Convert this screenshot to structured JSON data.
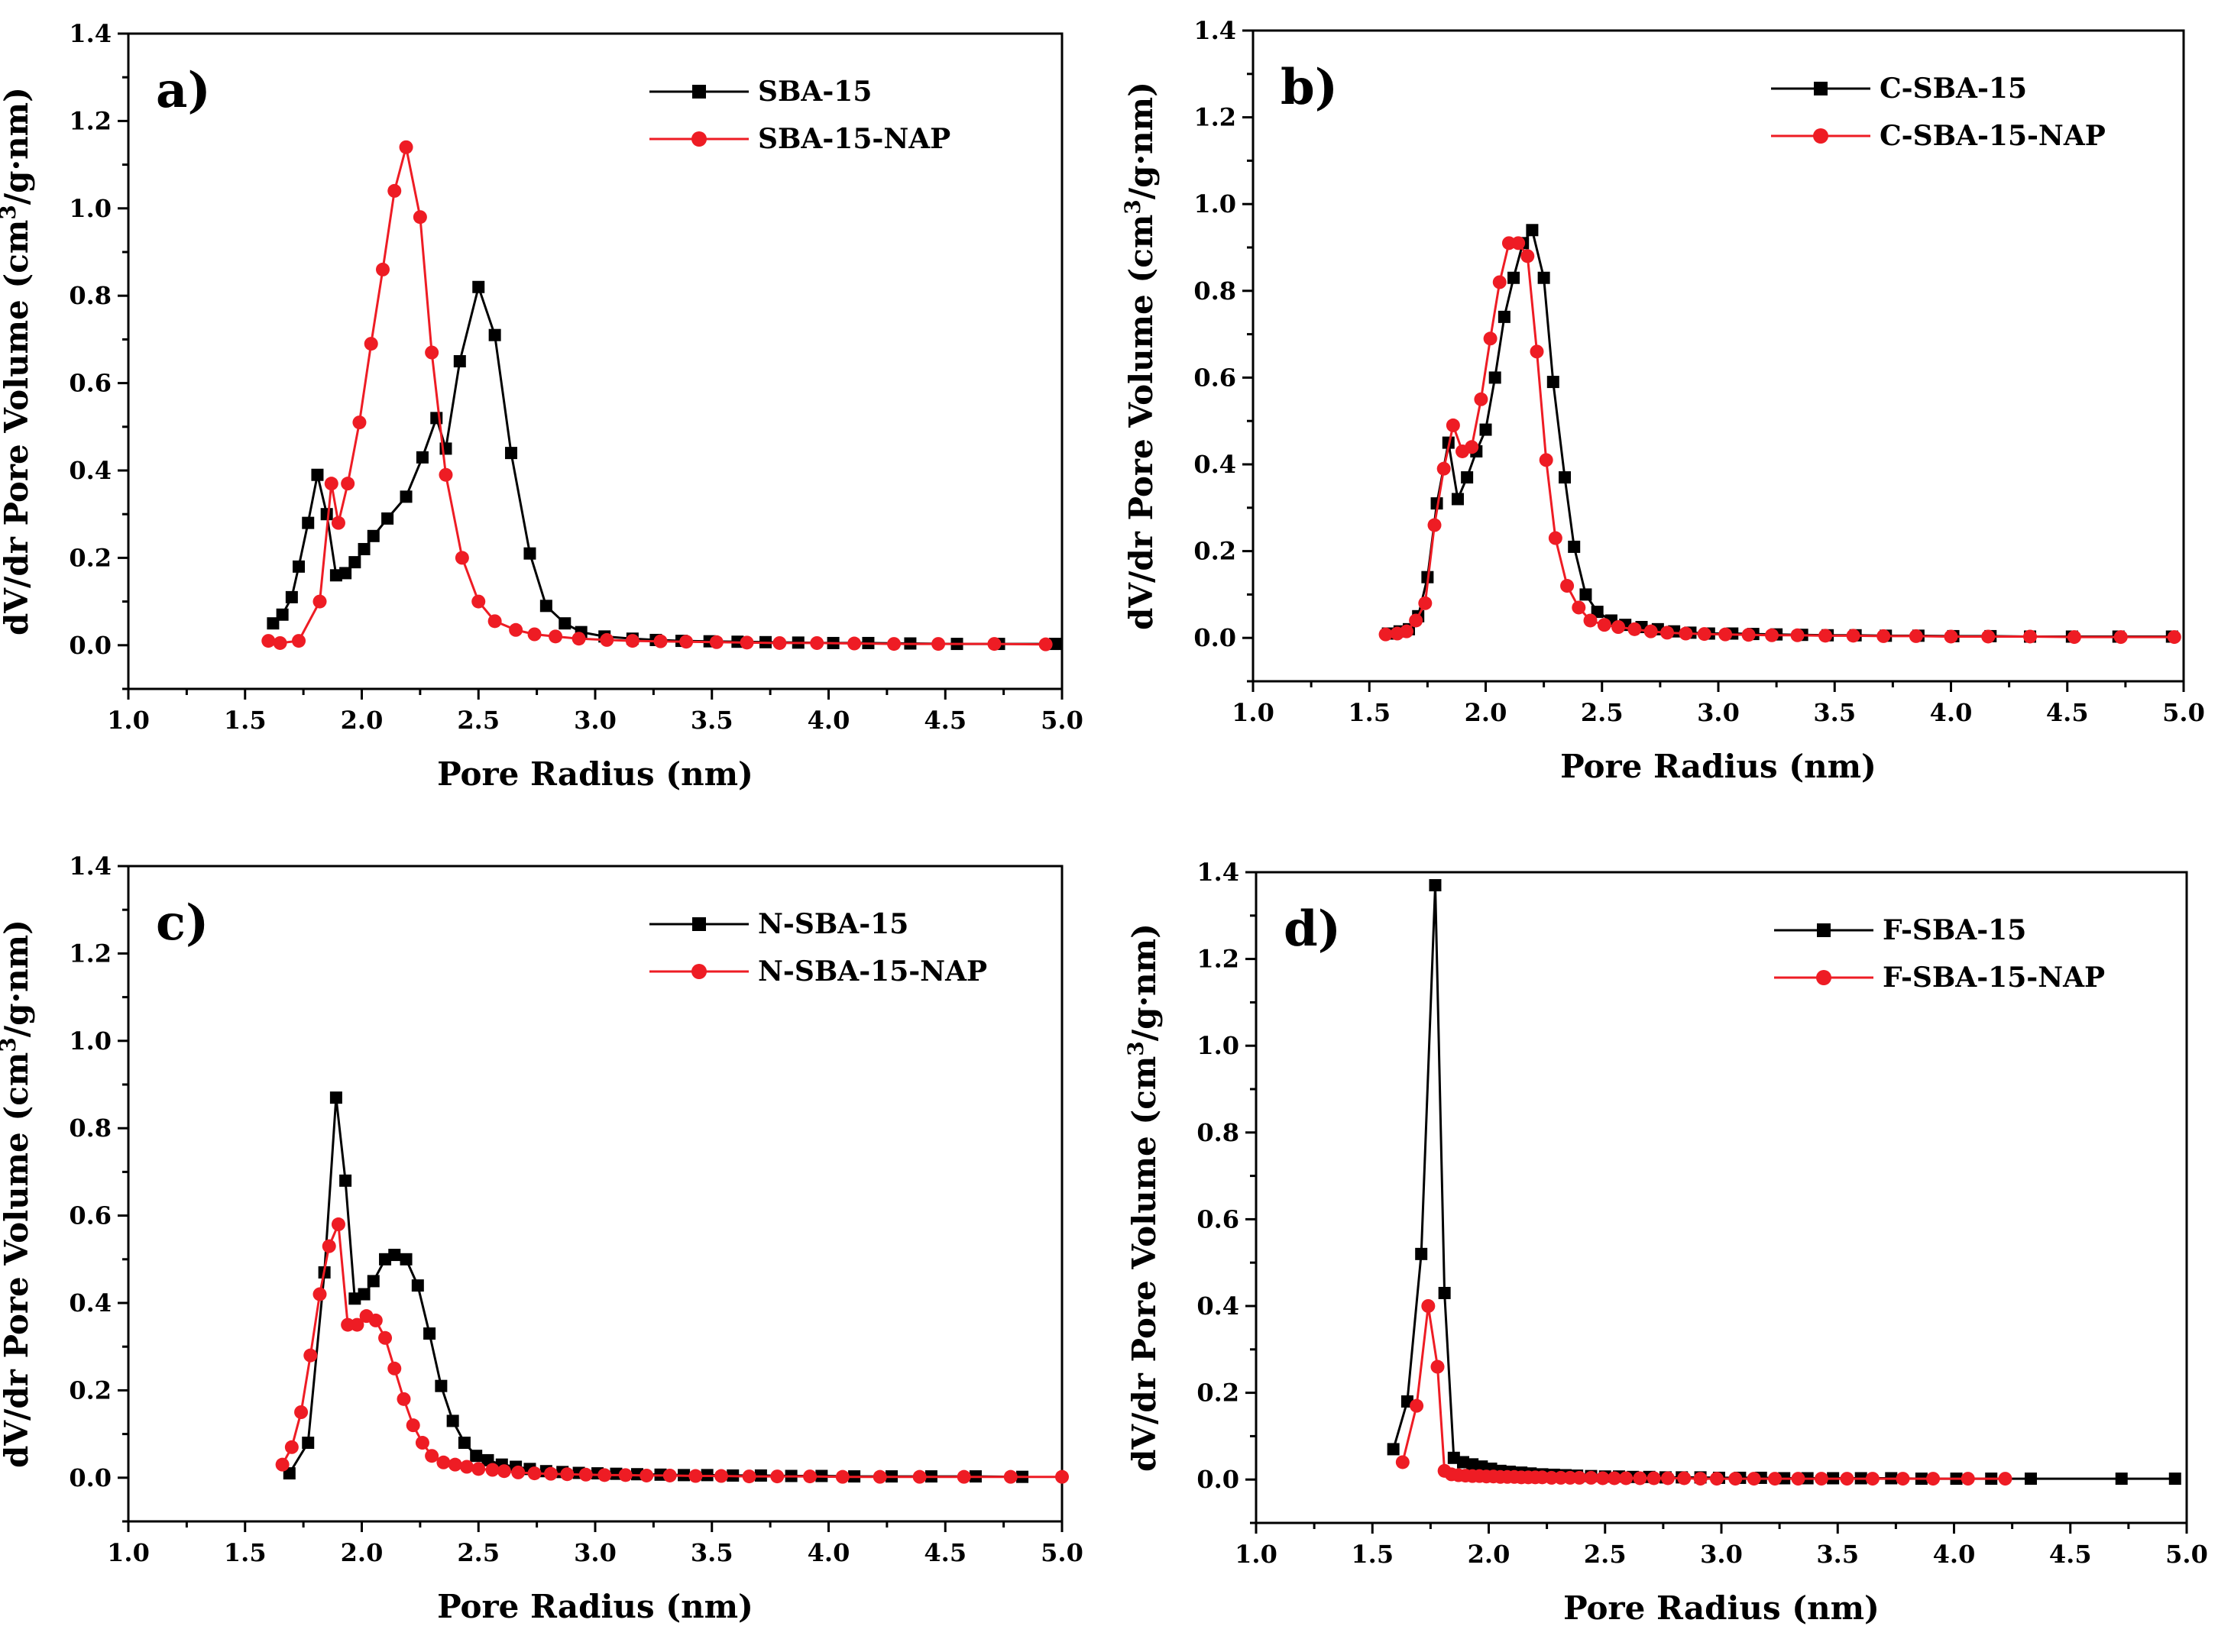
{
  "chart_data": [
    {
      "type": "line",
      "panel_label": "a)",
      "xlabel": "Pore Radius (nm)",
      "ylabel": "dV/dr Pore Volume (cm3/g·nm)",
      "xlim": [
        1.0,
        5.0
      ],
      "ylim": [
        -0.1,
        1.4
      ],
      "xticks": [
        "1.0",
        "1.5",
        "2.0",
        "2.5",
        "3.0",
        "3.5",
        "4.0",
        "4.5",
        "5.0"
      ],
      "yticks": [
        "0.0",
        "0.2",
        "0.4",
        "0.6",
        "0.8",
        "1.0",
        "1.2",
        "1.4"
      ],
      "legend_position": "top-right",
      "series": [
        {
          "name": "SBA-15",
          "color": "#000000",
          "marker": "square",
          "x": [
            1.62,
            1.66,
            1.7,
            1.73,
            1.77,
            1.81,
            1.85,
            1.89,
            1.93,
            1.97,
            2.01,
            2.05,
            2.11,
            2.19,
            2.26,
            2.32,
            2.36,
            2.42,
            2.5,
            2.57,
            2.64,
            2.72,
            2.79,
            2.87,
            2.94,
            3.04,
            3.16,
            3.26,
            3.37,
            3.49,
            3.61,
            3.73,
            3.87,
            4.02,
            4.17,
            4.35,
            4.55,
            4.73,
            4.97
          ],
          "y": [
            0.05,
            0.07,
            0.11,
            0.18,
            0.28,
            0.39,
            0.3,
            0.16,
            0.165,
            0.19,
            0.22,
            0.25,
            0.29,
            0.34,
            0.43,
            0.52,
            0.45,
            0.65,
            0.82,
            0.71,
            0.44,
            0.21,
            0.09,
            0.05,
            0.03,
            0.02,
            0.015,
            0.012,
            0.01,
            0.009,
            0.008,
            0.007,
            0.006,
            0.005,
            0.005,
            0.004,
            0.003,
            0.003,
            0.003
          ]
        },
        {
          "name": "SBA-15-NAP",
          "color": "#ee1c24",
          "marker": "circle",
          "x": [
            1.6,
            1.65,
            1.73,
            1.82,
            1.87,
            1.9,
            1.94,
            1.99,
            2.04,
            2.09,
            2.14,
            2.19,
            2.25,
            2.3,
            2.36,
            2.43,
            2.5,
            2.57,
            2.66,
            2.74,
            2.83,
            2.93,
            3.05,
            3.16,
            3.28,
            3.39,
            3.52,
            3.65,
            3.79,
            3.95,
            4.11,
            4.28,
            4.47,
            4.71,
            4.93
          ],
          "y": [
            0.01,
            0.005,
            0.01,
            0.1,
            0.37,
            0.28,
            0.37,
            0.51,
            0.69,
            0.86,
            1.04,
            1.14,
            0.98,
            0.67,
            0.39,
            0.2,
            0.1,
            0.055,
            0.035,
            0.025,
            0.02,
            0.015,
            0.012,
            0.01,
            0.009,
            0.008,
            0.007,
            0.006,
            0.005,
            0.005,
            0.004,
            0.003,
            0.003,
            0.003,
            0.002
          ]
        }
      ]
    },
    {
      "type": "line",
      "panel_label": "b)",
      "xlabel": "Pore Radius (nm)",
      "ylabel": "dV/dr Pore Volume (cm3/g·nm)",
      "xlim": [
        1.0,
        5.0
      ],
      "ylim": [
        -0.1,
        1.4
      ],
      "xticks": [
        "1.0",
        "1.5",
        "2.0",
        "2.5",
        "3.0",
        "3.5",
        "4.0",
        "4.5",
        "5.0"
      ],
      "yticks": [
        "0.0",
        "0.2",
        "0.4",
        "0.6",
        "0.8",
        "1.0",
        "1.2",
        "1.4"
      ],
      "legend_position": "top-right",
      "series": [
        {
          "name": "C-SBA-15",
          "color": "#000000",
          "marker": "square",
          "x": [
            1.58,
            1.63,
            1.67,
            1.71,
            1.75,
            1.79,
            1.84,
            1.88,
            1.92,
            1.96,
            2.0,
            2.04,
            2.08,
            2.12,
            2.16,
            2.2,
            2.25,
            2.29,
            2.34,
            2.38,
            2.43,
            2.48,
            2.54,
            2.6,
            2.67,
            2.74,
            2.81,
            2.88,
            2.96,
            3.06,
            3.15,
            3.25,
            3.36,
            3.47,
            3.59,
            3.72,
            3.86,
            4.01,
            4.17,
            4.34,
            4.52,
            4.72,
            4.95
          ],
          "y": [
            0.01,
            0.015,
            0.02,
            0.05,
            0.14,
            0.31,
            0.45,
            0.32,
            0.37,
            0.43,
            0.48,
            0.6,
            0.74,
            0.83,
            0.91,
            0.94,
            0.83,
            0.59,
            0.37,
            0.21,
            0.1,
            0.06,
            0.04,
            0.03,
            0.025,
            0.02,
            0.015,
            0.012,
            0.01,
            0.01,
            0.009,
            0.008,
            0.007,
            0.006,
            0.006,
            0.005,
            0.005,
            0.004,
            0.004,
            0.003,
            0.003,
            0.003,
            0.003
          ]
        },
        {
          "name": "C-SBA-15-NAP",
          "color": "#ee1c24",
          "marker": "circle",
          "x": [
            1.57,
            1.62,
            1.66,
            1.7,
            1.74,
            1.78,
            1.82,
            1.86,
            1.9,
            1.94,
            1.98,
            2.02,
            2.06,
            2.1,
            2.14,
            2.18,
            2.22,
            2.26,
            2.3,
            2.35,
            2.4,
            2.45,
            2.51,
            2.57,
            2.64,
            2.71,
            2.78,
            2.86,
            2.94,
            3.03,
            3.13,
            3.23,
            3.34,
            3.46,
            3.58,
            3.71,
            3.85,
            4.0,
            4.16,
            4.34,
            4.53,
            4.73,
            4.96
          ],
          "y": [
            0.008,
            0.01,
            0.015,
            0.04,
            0.08,
            0.26,
            0.39,
            0.49,
            0.43,
            0.44,
            0.55,
            0.69,
            0.82,
            0.91,
            0.91,
            0.88,
            0.66,
            0.41,
            0.23,
            0.12,
            0.07,
            0.04,
            0.03,
            0.025,
            0.02,
            0.015,
            0.012,
            0.01,
            0.009,
            0.008,
            0.007,
            0.006,
            0.006,
            0.005,
            0.005,
            0.004,
            0.004,
            0.003,
            0.003,
            0.003,
            0.002,
            0.002,
            0.002
          ]
        }
      ]
    },
    {
      "type": "line",
      "panel_label": "c)",
      "xlabel": "Pore Radius (nm)",
      "ylabel": "dV/dr Pore Volume (cm3/g·nm)",
      "xlim": [
        1.0,
        5.0
      ],
      "ylim": [
        -0.1,
        1.4
      ],
      "xticks": [
        "1.0",
        "1.5",
        "2.0",
        "2.5",
        "3.0",
        "3.5",
        "4.0",
        "4.5",
        "5.0"
      ],
      "yticks": [
        "0.0",
        "0.2",
        "0.4",
        "0.6",
        "0.8",
        "1.0",
        "1.2",
        "1.4"
      ],
      "legend_position": "top-right",
      "series": [
        {
          "name": "N-SBA-15",
          "color": "#000000",
          "marker": "square",
          "x": [
            1.69,
            1.77,
            1.84,
            1.89,
            1.93,
            1.97,
            2.01,
            2.05,
            2.1,
            2.14,
            2.19,
            2.24,
            2.29,
            2.34,
            2.39,
            2.44,
            2.49,
            2.54,
            2.6,
            2.66,
            2.72,
            2.79,
            2.86,
            2.93,
            3.01,
            3.09,
            3.18,
            3.28,
            3.38,
            3.48,
            3.59,
            3.71,
            3.84,
            3.97,
            4.11,
            4.27,
            4.44,
            4.63,
            4.83
          ],
          "y": [
            0.01,
            0.08,
            0.47,
            0.87,
            0.68,
            0.41,
            0.42,
            0.45,
            0.5,
            0.51,
            0.5,
            0.44,
            0.33,
            0.21,
            0.13,
            0.08,
            0.05,
            0.04,
            0.03,
            0.025,
            0.02,
            0.015,
            0.013,
            0.011,
            0.01,
            0.009,
            0.008,
            0.007,
            0.006,
            0.006,
            0.005,
            0.005,
            0.004,
            0.004,
            0.003,
            0.003,
            0.003,
            0.003,
            0.002
          ]
        },
        {
          "name": "N-SBA-15-NAP",
          "color": "#ee1c24",
          "marker": "circle",
          "x": [
            1.66,
            1.7,
            1.74,
            1.78,
            1.82,
            1.86,
            1.9,
            1.94,
            1.98,
            2.02,
            2.06,
            2.1,
            2.14,
            2.18,
            2.22,
            2.26,
            2.3,
            2.35,
            2.4,
            2.45,
            2.5,
            2.56,
            2.61,
            2.67,
            2.74,
            2.81,
            2.88,
            2.96,
            3.04,
            3.13,
            3.22,
            3.32,
            3.43,
            3.54,
            3.66,
            3.78,
            3.92,
            4.06,
            4.22,
            4.39,
            4.58,
            4.78,
            5.0
          ],
          "y": [
            0.03,
            0.07,
            0.15,
            0.28,
            0.42,
            0.53,
            0.58,
            0.35,
            0.35,
            0.37,
            0.36,
            0.32,
            0.25,
            0.18,
            0.12,
            0.08,
            0.05,
            0.035,
            0.03,
            0.025,
            0.02,
            0.018,
            0.015,
            0.012,
            0.01,
            0.009,
            0.008,
            0.007,
            0.006,
            0.006,
            0.005,
            0.005,
            0.004,
            0.004,
            0.003,
            0.003,
            0.003,
            0.002,
            0.002,
            0.002,
            0.002,
            0.002,
            0.002
          ]
        }
      ]
    },
    {
      "type": "line",
      "panel_label": "d)",
      "xlabel": "Pore Radius (nm)",
      "ylabel": "dV/dr Pore Volume (cm3/g·nm)",
      "xlim": [
        1.0,
        5.0
      ],
      "ylim": [
        -0.1,
        1.4
      ],
      "xticks": [
        "1.0",
        "1.5",
        "2.0",
        "2.5",
        "3.0",
        "3.5",
        "4.0",
        "4.5",
        "5.0"
      ],
      "yticks": [
        "0.0",
        "0.2",
        "0.4",
        "0.6",
        "0.8",
        "1.0",
        "1.2",
        "1.4"
      ],
      "legend_position": "top-right",
      "series": [
        {
          "name": "F-SBA-15",
          "color": "#000000",
          "marker": "square",
          "x": [
            1.59,
            1.65,
            1.71,
            1.77,
            1.81,
            1.85,
            1.89,
            1.93,
            1.97,
            2.01,
            2.05,
            2.09,
            2.14,
            2.18,
            2.23,
            2.28,
            2.33,
            2.38,
            2.44,
            2.5,
            2.56,
            2.62,
            2.69,
            2.76,
            2.83,
            2.91,
            2.99,
            3.08,
            3.17,
            3.27,
            3.37,
            3.48,
            3.6,
            3.73,
            3.86,
            4.01,
            4.16,
            4.33,
            4.72,
            4.95
          ],
          "y": [
            0.07,
            0.18,
            0.52,
            1.37,
            0.43,
            0.05,
            0.04,
            0.035,
            0.03,
            0.025,
            0.02,
            0.018,
            0.016,
            0.014,
            0.012,
            0.011,
            0.01,
            0.009,
            0.008,
            0.007,
            0.007,
            0.006,
            0.006,
            0.005,
            0.005,
            0.005,
            0.004,
            0.004,
            0.004,
            0.003,
            0.003,
            0.003,
            0.003,
            0.003,
            0.002,
            0.002,
            0.002,
            0.002,
            0.002,
            0.002
          ]
        },
        {
          "name": "F-SBA-15-NAP",
          "color": "#ee1c24",
          "marker": "circle",
          "x": [
            1.63,
            1.69,
            1.74,
            1.78,
            1.81,
            1.84,
            1.87,
            1.9,
            1.93,
            1.96,
            1.99,
            2.02,
            2.05,
            2.08,
            2.11,
            2.14,
            2.17,
            2.2,
            2.23,
            2.27,
            2.31,
            2.35,
            2.39,
            2.44,
            2.49,
            2.54,
            2.59,
            2.65,
            2.71,
            2.77,
            2.84,
            2.91,
            2.98,
            3.06,
            3.14,
            3.23,
            3.33,
            3.43,
            3.54,
            3.65,
            3.78,
            3.91,
            4.06,
            4.22
          ],
          "y": [
            0.04,
            0.17,
            0.4,
            0.26,
            0.02,
            0.012,
            0.01,
            0.009,
            0.008,
            0.008,
            0.007,
            0.007,
            0.006,
            0.006,
            0.006,
            0.005,
            0.005,
            0.005,
            0.005,
            0.004,
            0.004,
            0.004,
            0.004,
            0.004,
            0.003,
            0.003,
            0.003,
            0.003,
            0.003,
            0.003,
            0.003,
            0.002,
            0.002,
            0.002,
            0.002,
            0.002,
            0.002,
            0.002,
            0.002,
            0.002,
            0.002,
            0.002,
            0.002,
            0.002
          ]
        }
      ]
    }
  ]
}
